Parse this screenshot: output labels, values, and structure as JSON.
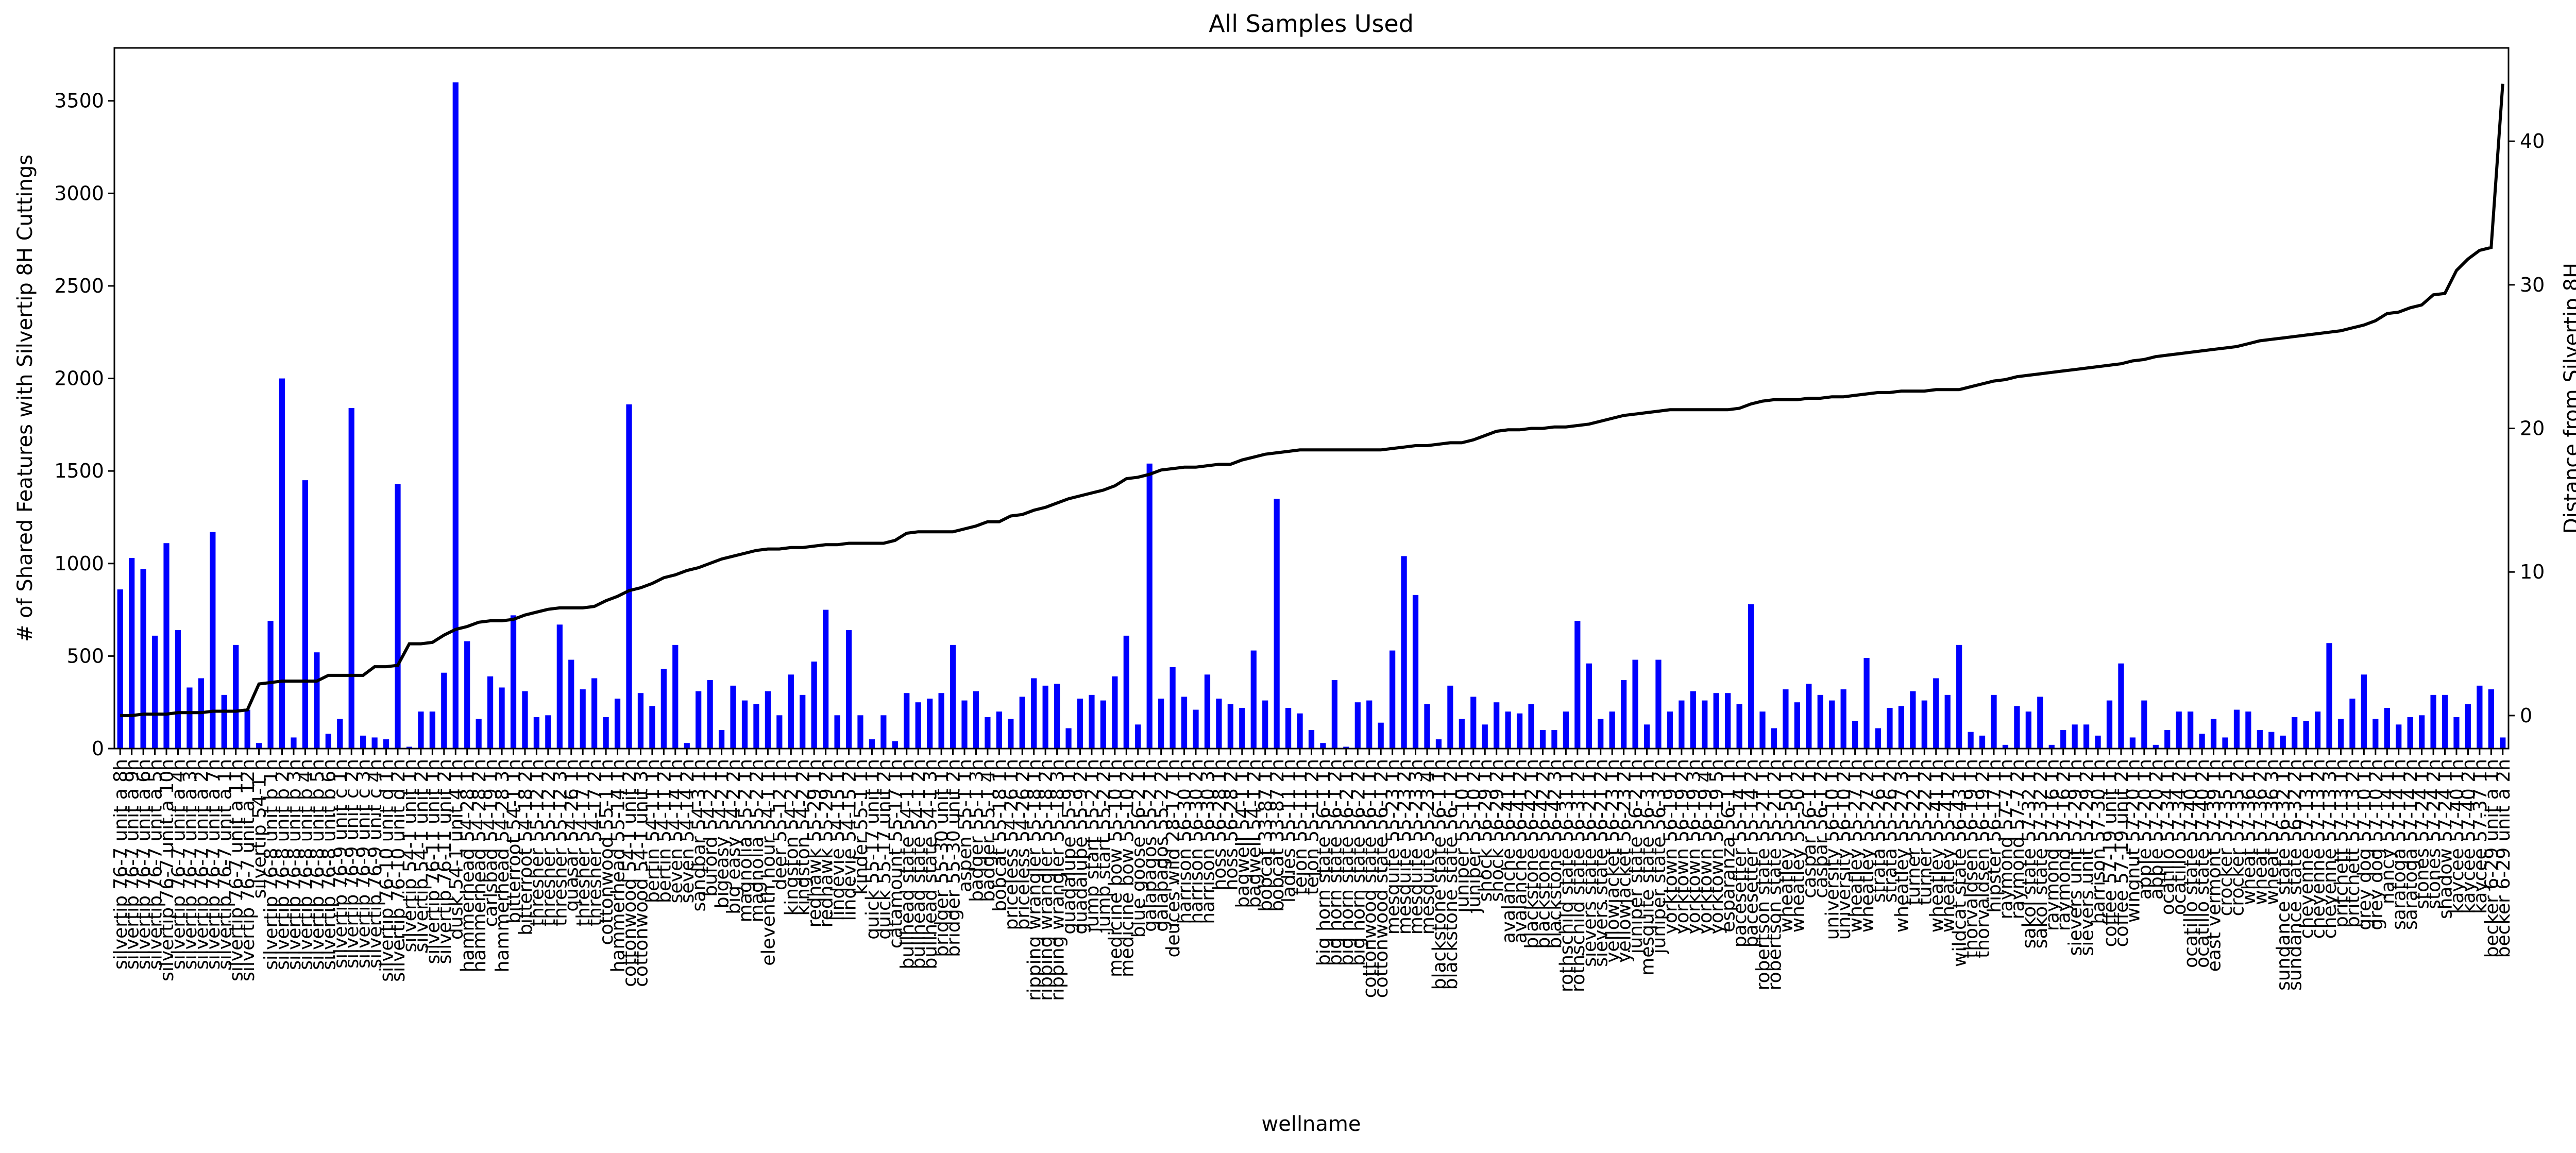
{
  "chart_data": {
    "type": "bar",
    "title": "All Samples Used",
    "x_label": "wellname",
    "y_label": "# of Shared Features with Silvertip 8H Cuttings",
    "y2_label": "Distance from Silvertip 8H",
    "categories": [
      "silvertip 76-7 unit a 8h",
      "silvertip 76-7 unit a 9h",
      "silvertip 76-7 unit a 6h",
      "silvertip 76-7 unit a 5h",
      "silvertip 76-7 unit a 10h",
      "silvertip 76-7 unit a 4h",
      "silvertip 76-7 unit a 3h",
      "silvertip 76-7 unit a 2h",
      "silvertip 76-7 unit a 7h",
      "silvertip 76-7 unit a 1h",
      "silvertip 76-7 unit a 11h",
      "silvertip 76-7 unit a 12h",
      "silvertip 54-1 h",
      "silvertip 76-8 unit b 1h",
      "silvertip 76-8 unit b 2h",
      "silvertip 76-8 unit b 3h",
      "silvertip 76-8 unit b 4h",
      "silvertip 76-8 unit b 5h",
      "silvertip 76-8 unit b 6h",
      "silvertip 76-9 unit c 1h",
      "silvertip 76-9 unit c 2h",
      "silvertip 76-9 unit c 3h",
      "silvertip 76-9 unit c 4h",
      "silvertip 76-10 unit d 1h",
      "silvertip 76-10 unit d 2h",
      "silvertip 54-1 unit 1h",
      "silvertip 54-1 unit 2h",
      "silvertip 76-11 unit 1h",
      "silvertip 76-11 unit 2h",
      "dusk 54-1 unit 4 1h",
      "hammerhead 54-28 1h",
      "hammerhead 54-28 2h",
      "carlsbad 54-19 1h",
      "hammerhead 54-28 3h",
      "bitterroot 54-1 1h",
      "bitterroot 54-18 2h",
      "thresher 55-12 1h",
      "thresher 55-12 2h",
      "thresher 55-12 3h",
      "quasar 54-26 1h",
      "thresher 54-17 1h",
      "thresher 54-17 2h",
      "cottonwood 55-1 1h",
      "hammerhead 55-14 1h",
      "cottonwood 54-1 unit 2h",
      "cottonwood 54-1 unit 3h",
      "bertin 54-11 1h",
      "bertin 54-11 2h",
      "seven 54-14 1h",
      "seven 54-14 2h",
      "sandbar 54-3 1h",
      "buford 54-2 1h",
      "bigeasy 54-2 1h",
      "big easy 54-2 2h",
      "magnolia 55-2 1h",
      "magnolia 55-2 2h",
      "eleventh hour 54-1 1h",
      "deer 55-12 1h",
      "kingston 54-2 1h",
      "kingston 54-2 2h",
      "redhawk 55-29 1h",
      "redhawk 55-29 2h",
      "lindevie 54-15 1h",
      "lindevie 54-15 2h",
      "kinder 55-1 1h",
      "quick 55-17 unit 1h",
      "quick 55-17 unit 2h",
      "catamount 55-17 1h",
      "bullhead state 54-1 1h",
      "bullhead state 54-1 2h",
      "bullhead state 54-1 3h",
      "bridger 55-30 unit 1h",
      "bridger 55-30 unit 2h",
      "aspen 55-1 1h",
      "badger 55-1 3h",
      "badger 55-1 4h",
      "bobcat 55-18 1h",
      "priceless 54-26 1h",
      "priceless 54-26 2h",
      "ripping wrangler 55-18 1h",
      "ripping wrangler 55-18 2h",
      "ripping wrangler 55-18 3h",
      "guadalupe 55-9 1h",
      "guadalupe 55-9 2h",
      "jump start 55-2 1h",
      "jump start 55-2 2h",
      "medicine bow 55-10 1h",
      "medicine bow 55-10 2h",
      "blue goose 56-2 1h",
      "galapagos 55-2 1h",
      "galapagos 55-2 2h",
      "deuces wild 28-17 1h",
      "harrison 56-30 1h",
      "harrison 56-30 2h",
      "harrison 56-30 3h",
      "hoss 56-28 1h",
      "hoss 56-28 2h",
      "bagwell 54-1 1h",
      "bagwell 54-1 2h",
      "bobcat 33-87 1h",
      "bobcat 33-87 2h",
      "ladies 55-11 1h",
      "tejon 55-11 1h",
      "tejon 55-11 2h",
      "big horn state 56-1 1h",
      "big horn state 56-1 2h",
      "big horn state 56-2 1h",
      "big horn state 56-2 2h",
      "cottonwood state 56-1 1h",
      "cottonwood state 56-1 2h",
      "mesquite 55-23 1h",
      "mesquite 55-23 2h",
      "mesquite 55-23 3h",
      "mesquite 55-23 4h",
      "blackstone state 56-1 1h",
      "blackstone state 56-1 2h",
      "juniper 55-10 1h",
      "juniper 55-10 2h",
      "shock 56-29 1h",
      "shock 56-29 2h",
      "avalanche 56-41 1h",
      "avalanche 56-41 2h",
      "blackstone 56-42 1h",
      "blackstone 56-42 2h",
      "blackstone 56-42 3h",
      "rothschild state 56-31 1h",
      "rothschild state 56-31 2h",
      "sievers state 56-21 1h",
      "sievers state 56-21 2h",
      "yellowjacket 56-23 1h",
      "yellowjacket 56-23 2h",
      "juniper state 56-2 1h",
      "mesquite state 56-3 1h",
      "juniper state 56-3 2h",
      "yorktown 56-19 1h",
      "yorktown 56-19 2h",
      "yorktown 56-19 3h",
      "yorktown 56-19 4h",
      "yorktown 56-19 5h",
      "esparanza 56-1 1h",
      "pacesetter 55-14 1h",
      "pacesetter 55-14 2h",
      "robertson state 55-21 1h",
      "robertson state 55-21 2h",
      "wheatley 55-50 1h",
      "wheatley 55-50 2h",
      "caspar 56-1 1h",
      "caspar 56-1 2h",
      "university 56-10 1h",
      "university 56-10 2h",
      "wheatley 55-27 1h",
      "wheatley 55-27 2h",
      "strata 55-26 1h",
      "strata 55-26 2h",
      "wheatley 55-27 3h",
      "turner 55-22 1h",
      "turner 55-22 2h",
      "wheatley 55-41 1h",
      "wheatley 55-41 2h",
      "wildcat state 56-43 1h",
      "thorvaldsen 56-19 1h",
      "thorvaldsen 56-19 2h",
      "hipster 56-17 1h",
      "raymond 57-7 1h",
      "raymond 57-7 2h",
      "sakol state 57-32 1h",
      "sakol state 57-32 2h",
      "raymond 57-16 1h",
      "raymond 57-16 2h",
      "sievers unit 57-29 1h",
      "sievers unit 57-29 2h",
      "harrison 57-30 1h",
      "coffee 57-19 unit 1h",
      "coffee 57-19 unit 2h",
      "wingnut 57-20 1h",
      "apple 57-20 1h",
      "apple 57-20 2h",
      "ocatillo 57-34 1h",
      "ocatillo 57-34 2h",
      "ocatillo state 57-40 1h",
      "ocatillo state 57-40 2h",
      "east vermont 57-39 1h",
      "crocker 57-35 1h",
      "crocker 57-35 2h",
      "wheat 57-36 1h",
      "wheat 57-36 2h",
      "wheat 57-36 3h",
      "sundance state 56-32 1h",
      "sundance state 56-32 2h",
      "cheyenne 57-13 1h",
      "cheyenne 57-13 2h",
      "cheyenne 57-13 3h",
      "pritchett 57-13 1h",
      "pritchett 57-13 2h",
      "grey dog 57-10 1h",
      "grey dog 57-10 2h",
      "nancy 57-14 1h",
      "saratoga 57-14 1h",
      "saratoga 57-14 2h",
      "stones 57-24 1h",
      "stones 57-24 2h",
      "shadow 57-24 1h",
      "kaycee 57-40 1h",
      "kaycee 57-40 2h",
      "kaycee 57-37 1h",
      "becker 6-29 unit a 1h",
      "becker 6-29 unit a 2h"
    ],
    "series": [
      {
        "type": "bar",
        "color": "#0000ff",
        "values": [
          860,
          1030,
          970,
          610,
          1110,
          640,
          330,
          380,
          1170,
          290,
          560,
          210,
          30,
          690,
          2000,
          60,
          1450,
          520,
          80,
          160,
          1840,
          70,
          60,
          50,
          1430,
          10,
          200,
          200,
          410,
          3600,
          580,
          160,
          390,
          330,
          720,
          310,
          170,
          180,
          670,
          480,
          320,
          380,
          170,
          270,
          1860,
          300,
          230,
          430,
          560,
          30,
          310,
          370,
          100,
          340,
          260,
          240,
          310,
          180,
          400,
          290,
          470,
          750,
          180,
          640,
          180,
          50,
          180,
          40,
          300,
          250,
          270,
          300,
          560,
          260,
          310,
          170,
          200,
          160,
          280,
          380,
          340,
          350,
          110,
          270,
          290,
          260,
          390,
          610,
          130,
          1540,
          270,
          440,
          280,
          210,
          400,
          270,
          240,
          220,
          530,
          260,
          1350,
          220,
          190,
          100,
          30,
          370,
          10,
          250,
          260,
          140,
          530,
          1040,
          830,
          240,
          50,
          340,
          160,
          280,
          130,
          250,
          200,
          190,
          240,
          100,
          100,
          200,
          690,
          460,
          160,
          200,
          370,
          480,
          130,
          480,
          200,
          260,
          310,
          260,
          300,
          300,
          240,
          780,
          200,
          110,
          320,
          250,
          350,
          290,
          260,
          320,
          150,
          490,
          110,
          220,
          230,
          310,
          260,
          380,
          290,
          560,
          90,
          70,
          290,
          20,
          230,
          200,
          280,
          20,
          100,
          130,
          130,
          70,
          260,
          460,
          60,
          260,
          20,
          100,
          200,
          200,
          80,
          160,
          60,
          210,
          200,
          100,
          90,
          70,
          170,
          150,
          200,
          570,
          160,
          270,
          400,
          160,
          220,
          130,
          170,
          180,
          290,
          290,
          170,
          240,
          340,
          320,
          60
        ]
      },
      {
        "type": "line",
        "axis": "y2",
        "color": "#000000",
        "values": [
          0,
          0,
          0.1,
          0.1,
          0.1,
          0.2,
          0.2,
          0.2,
          0.3,
          0.3,
          0.3,
          0.4,
          2.2,
          2.3,
          2.4,
          2.4,
          2.4,
          2.4,
          2.8,
          2.8,
          2.8,
          2.8,
          3.4,
          3.4,
          3.5,
          5,
          5,
          5.1,
          5.6,
          6,
          6.2,
          6.5,
          6.6,
          6.6,
          6.7,
          7,
          7.2,
          7.4,
          7.5,
          7.5,
          7.5,
          7.6,
          8,
          8.3,
          8.7,
          8.9,
          9.2,
          9.6,
          9.8,
          10.1,
          10.3,
          10.6,
          10.9,
          11.1,
          11.3,
          11.5,
          11.6,
          11.6,
          11.7,
          11.7,
          11.8,
          11.9,
          11.9,
          12,
          12,
          12,
          12,
          12.2,
          12.7,
          12.8,
          12.8,
          12.8,
          12.8,
          13,
          13.2,
          13.5,
          13.5,
          13.9,
          14,
          14.3,
          14.5,
          14.8,
          15.1,
          15.3,
          15.5,
          15.7,
          16,
          16.5,
          16.6,
          16.8,
          17.1,
          17.2,
          17.3,
          17.3,
          17.4,
          17.5,
          17.5,
          17.8,
          18,
          18.2,
          18.3,
          18.4,
          18.5,
          18.5,
          18.5,
          18.5,
          18.5,
          18.5,
          18.5,
          18.5,
          18.6,
          18.7,
          18.8,
          18.8,
          18.9,
          19,
          19,
          19.2,
          19.5,
          19.8,
          19.9,
          19.9,
          20,
          20,
          20.1,
          20.1,
          20.2,
          20.3,
          20.5,
          20.7,
          20.9,
          21,
          21.1,
          21.2,
          21.3,
          21.3,
          21.3,
          21.3,
          21.3,
          21.3,
          21.4,
          21.7,
          21.9,
          22,
          22,
          22,
          22.1,
          22.1,
          22.2,
          22.2,
          22.3,
          22.4,
          22.5,
          22.5,
          22.6,
          22.6,
          22.6,
          22.7,
          22.7,
          22.7,
          22.9,
          23.1,
          23.3,
          23.4,
          23.6,
          23.7,
          23.8,
          23.9,
          24,
          24.1,
          24.2,
          24.3,
          24.4,
          24.5,
          24.7,
          24.8,
          25,
          25.1,
          25.2,
          25.3,
          25.4,
          25.5,
          25.6,
          25.7,
          25.9,
          26.1,
          26.2,
          26.3,
          26.4,
          26.5,
          26.6,
          26.7,
          26.8,
          27,
          27.2,
          27.5,
          28,
          28.1,
          28.4,
          28.6,
          29.3,
          29.4,
          31,
          31.8,
          32.4,
          32.6,
          44
        ]
      }
    ],
    "ylim": [
      0,
      3786
    ],
    "yticks": [
      0,
      500,
      1000,
      1500,
      2000,
      2500,
      3000,
      3500
    ],
    "y2lim": [
      -2.3,
      46.5
    ],
    "y2ticks": [
      0,
      10,
      20,
      30,
      40
    ],
    "grid": false
  }
}
